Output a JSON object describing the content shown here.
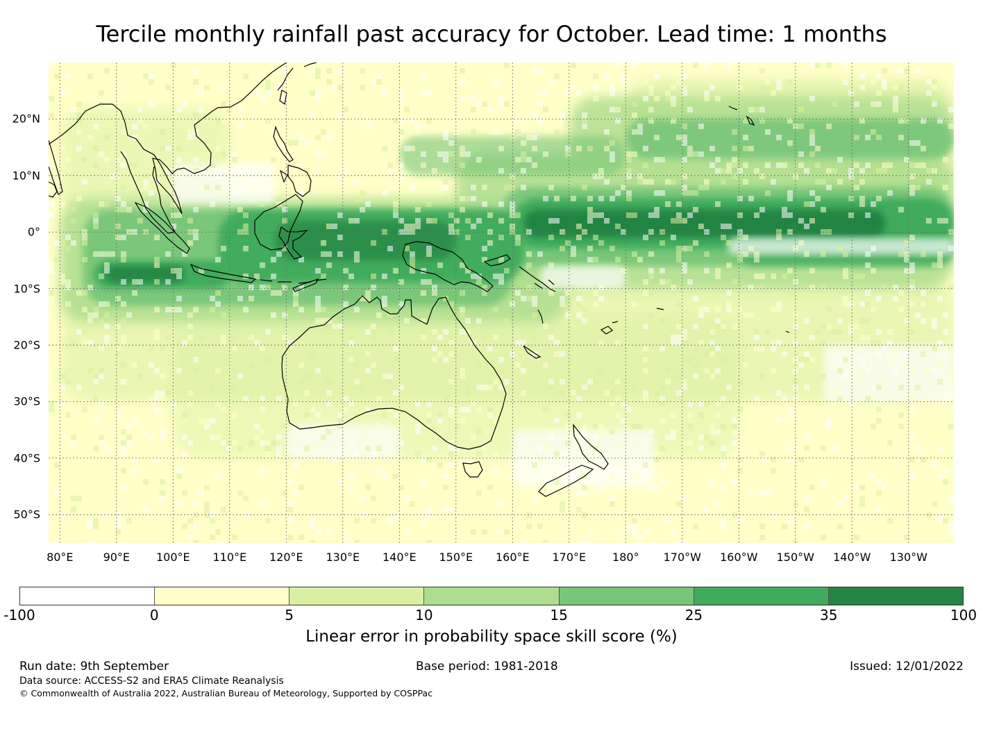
{
  "title": "Tercile monthly rainfall past accuracy for October. Lead time: 1 months",
  "map": {
    "lat_labels": [
      "20°N",
      "10°N",
      "0°",
      "10°S",
      "20°S",
      "30°S",
      "40°S",
      "50°S"
    ],
    "lat_values": [
      20,
      10,
      0,
      -10,
      -20,
      -30,
      -40,
      -50
    ],
    "lon_labels": [
      "80°E",
      "90°E",
      "100°E",
      "110°E",
      "120°E",
      "130°E",
      "140°E",
      "150°E",
      "160°E",
      "170°E",
      "180°",
      "170°W",
      "160°W",
      "150°W",
      "140°W",
      "130°W"
    ],
    "lon_values": [
      80,
      90,
      100,
      110,
      120,
      130,
      140,
      150,
      160,
      170,
      180,
      190,
      200,
      210,
      220,
      230
    ],
    "lon_range": [
      78,
      238
    ],
    "lat_range": [
      -55,
      30
    ],
    "projection": "equirectangular",
    "gridlines": true,
    "field": "Linear error in probability space skill score (%)",
    "high_skill_regions": [
      {
        "name": "equatorial central Pacific band",
        "level": "35-100",
        "lon": [
          160,
          230
        ],
        "lat": [
          -2,
          5
        ]
      },
      {
        "name": "Maritime Continent",
        "level": "25-35",
        "lon": [
          108,
          160
        ],
        "lat": [
          -9,
          4
        ]
      },
      {
        "name": "eastern Indian Ocean",
        "level": "25-35",
        "lon": [
          86,
          108
        ],
        "lat": [
          -10,
          -5
        ]
      },
      {
        "name": "northern Pacific band",
        "level": "15-25",
        "lon": [
          170,
          238
        ],
        "lat": [
          10,
          20
        ]
      }
    ]
  },
  "colorbar": {
    "bounds": [
      "-100",
      "0",
      "5",
      "10",
      "15",
      "25",
      "35",
      "100"
    ],
    "colors": [
      "#ffffff",
      "#ffffcc",
      "#d9f0a3",
      "#addd8e",
      "#78c679",
      "#41ab5d",
      "#238443"
    ],
    "label": "Linear error in probability space skill score (%)"
  },
  "footer": {
    "run_date": "Run date: 9th September",
    "base_period": "Base period: 1981-2018",
    "issued": "Issued: 12/01/2022",
    "data_source": "Data source: ACCESS-S2 and ERA5 Climate Reanalysis",
    "copyright": "© Commonwealth of Australia 2022, Australian Bureau of Meteorology, Supported by COSPPac"
  }
}
